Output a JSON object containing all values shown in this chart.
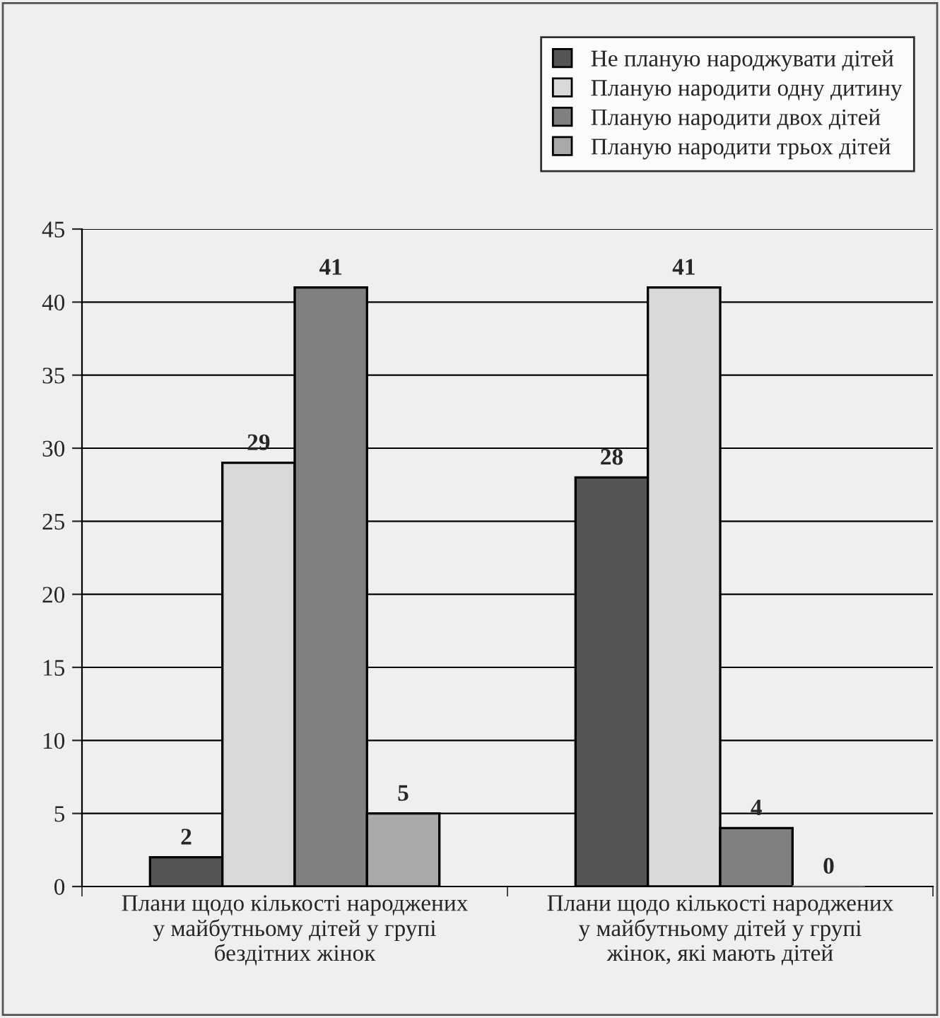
{
  "chart_data": {
    "type": "bar",
    "categories": [
      "Плани щодо кількості народжених у майбутньому дітей у групі бездітних жінок",
      "Плани щодо кількості народжених у майбутньому дітей у групі жінок, які мають дітей"
    ],
    "series": [
      {
        "name": "Не планую народжувати дітей",
        "color": "#555555",
        "values": [
          2,
          28
        ]
      },
      {
        "name": "Планую народити одну дитину",
        "color": "#d9d9d9",
        "values": [
          29,
          41
        ]
      },
      {
        "name": "Планую народити двох дітей",
        "color": "#808080",
        "values": [
          41,
          4
        ]
      },
      {
        "name": "Планую народити трьох дітей",
        "color": "#a9a9a9",
        "values": [
          5,
          0
        ]
      }
    ],
    "ylim": [
      0,
      45
    ],
    "yticks": [
      0,
      5,
      10,
      15,
      20,
      25,
      30,
      35,
      40,
      45
    ],
    "grid": "y",
    "legend": "top right",
    "data_labels": true
  }
}
